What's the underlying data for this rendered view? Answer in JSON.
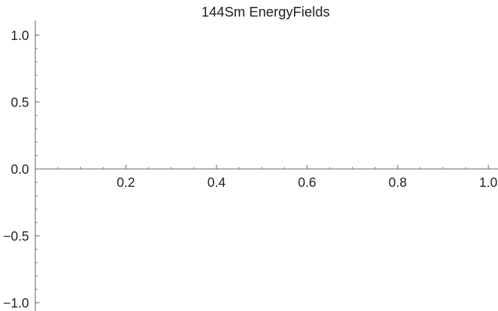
{
  "chart_data": {
    "type": "line",
    "title": "144Sm EnergyFields",
    "xlabel": "",
    "ylabel": "",
    "xlim": [
      0.0,
      1.0
    ],
    "ylim": [
      -1.0,
      1.0
    ],
    "x_ticks": [
      {
        "value": 0.2,
        "label": "0.2"
      },
      {
        "value": 0.4,
        "label": "0.4"
      },
      {
        "value": 0.6,
        "label": "0.6"
      },
      {
        "value": 0.8,
        "label": "0.8"
      },
      {
        "value": 1.0,
        "label": "1.0"
      }
    ],
    "y_ticks": [
      {
        "value": 1.0,
        "label": "1.0"
      },
      {
        "value": 0.5,
        "label": "0.5"
      },
      {
        "value": 0.0,
        "label": "0.0"
      },
      {
        "value": -0.5,
        "label": "−0.5"
      },
      {
        "value": -1.0,
        "label": "−1.0"
      }
    ],
    "x_minor_step": 0.05,
    "y_minor_step": 0.1,
    "grid": false,
    "series": []
  }
}
